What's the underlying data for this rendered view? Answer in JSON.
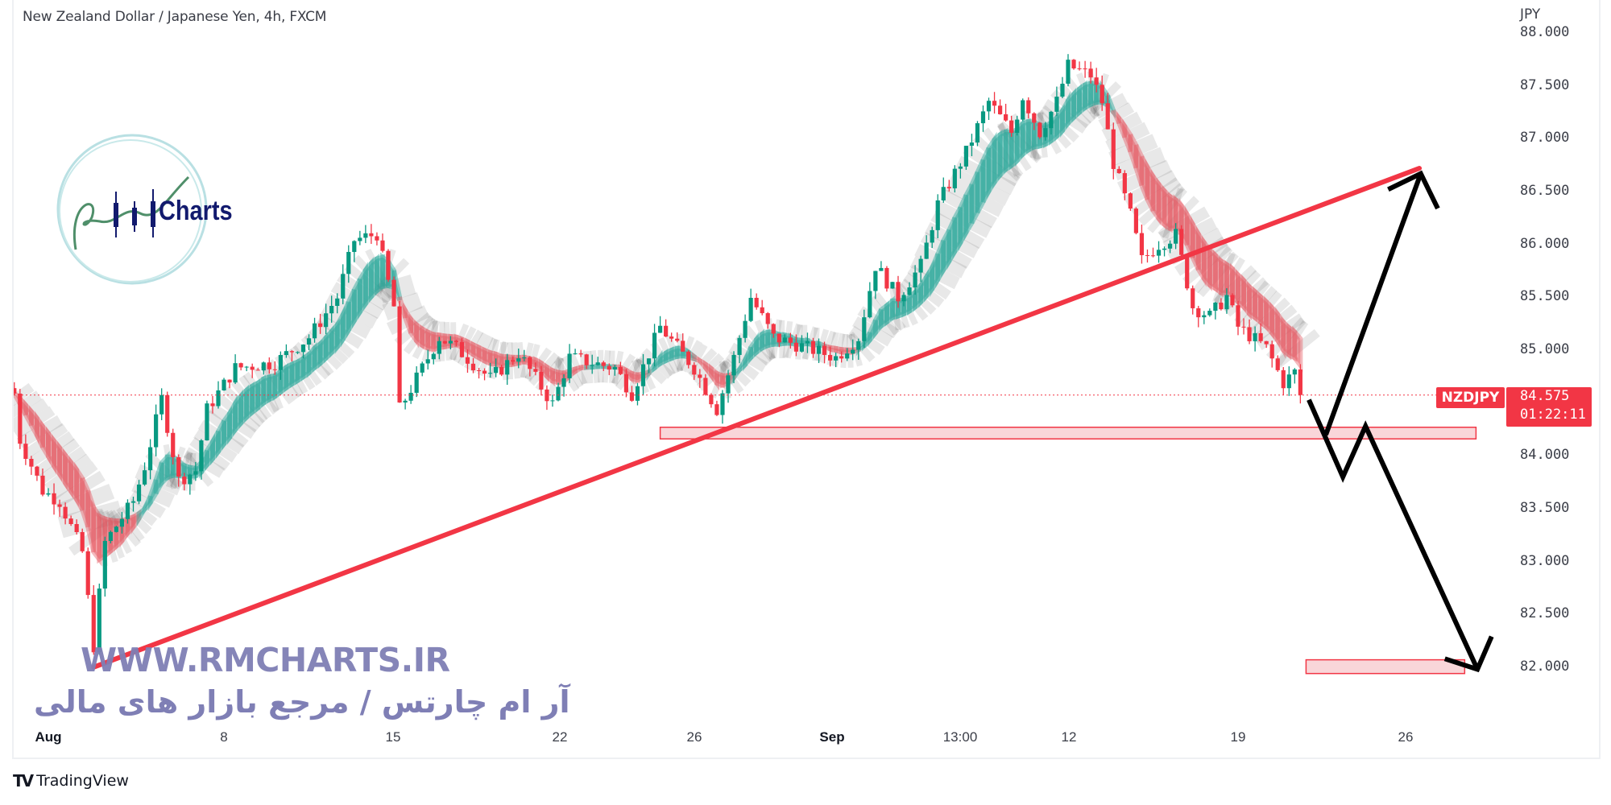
{
  "header": {
    "title": "New Zealand Dollar / Japanese Yen, 4h, FXCM"
  },
  "price_axis": {
    "currency": "JPY",
    "ticks": [
      "88.000",
      "87.500",
      "87.000",
      "86.500",
      "86.000",
      "85.500",
      "85.000",
      "84.000",
      "83.500",
      "83.000",
      "82.500",
      "82.000"
    ]
  },
  "time_axis": {
    "ticks": [
      "Aug",
      "8",
      "15",
      "22",
      "26",
      "Sep",
      "13:00",
      "12",
      "19",
      "26"
    ]
  },
  "last_price": {
    "symbol": "NZDJPY",
    "price": "84.575",
    "countdown": "01:22:11"
  },
  "watermark": {
    "url": "WWW.RMCHARTS.IR",
    "tagline": "آر ام چارتس / مرجع بازار های مالی",
    "logo_text": "Charts"
  },
  "footer": {
    "brand": "TradingView"
  },
  "colors": {
    "up": "#089981",
    "down": "#f23645",
    "trendline": "#f23645",
    "zone_fill": "#f9d6d9",
    "zone_border": "#f23645",
    "arrows": "#000000",
    "watermark": "#7f7fb5"
  },
  "chart_data": {
    "type": "candlestick",
    "symbol": "NZDJPY",
    "timeframe": "4h",
    "ylim": [
      81.7,
      88.1
    ],
    "price_path": [
      {
        "t": "Jul 29 00:00",
        "p": 84.59
      },
      {
        "t": "Jul 29 04:00",
        "p": 84.15
      },
      {
        "t": "Jul 29 20:00",
        "p": 83.67
      },
      {
        "t": "Aug 01 08:00",
        "p": 83.57
      },
      {
        "t": "Aug 02 00:00",
        "p": 83.09
      },
      {
        "t": "Aug 02 08:00",
        "p": 82.2
      },
      {
        "t": "Aug 02 16:00",
        "p": 83.18
      },
      {
        "t": "Aug 03 12:00",
        "p": 83.57
      },
      {
        "t": "Aug 03 20:00",
        "p": 83.9
      },
      {
        "t": "Aug 04 08:00",
        "p": 84.54
      },
      {
        "t": "Aug 04 20:00",
        "p": 83.77
      },
      {
        "t": "Aug 05 08:00",
        "p": 83.86
      },
      {
        "t": "Aug 05 16:00",
        "p": 84.44
      },
      {
        "t": "Aug 08 12:00",
        "p": 84.83
      },
      {
        "t": "Aug 09 16:00",
        "p": 84.88
      },
      {
        "t": "Aug 10 16:00",
        "p": 85.12
      },
      {
        "t": "Aug 11 12:00",
        "p": 85.5
      },
      {
        "t": "Aug 12 00:00",
        "p": 86.04
      },
      {
        "t": "Aug 12 16:00",
        "p": 86.1
      },
      {
        "t": "Aug 15 04:00",
        "p": 85.41
      },
      {
        "t": "Aug 15 08:00",
        "p": 84.44
      },
      {
        "t": "Aug 15 20:00",
        "p": 84.73
      },
      {
        "t": "Aug 16 12:00",
        "p": 85.12
      },
      {
        "t": "Aug 17 00:00",
        "p": 85.02
      },
      {
        "t": "Aug 18 00:00",
        "p": 84.73
      },
      {
        "t": "Aug 18 20:00",
        "p": 84.97
      },
      {
        "t": "Aug 19 20:00",
        "p": 84.49
      },
      {
        "t": "Aug 22 08:00",
        "p": 84.93
      },
      {
        "t": "Aug 23 16:00",
        "p": 84.83
      },
      {
        "t": "Aug 24 04:00",
        "p": 84.59
      },
      {
        "t": "Aug 25 00:00",
        "p": 85.22
      },
      {
        "t": "Aug 26 00:00",
        "p": 84.83
      },
      {
        "t": "Aug 26 16:00",
        "p": 84.44
      },
      {
        "t": "Aug 29 04:00",
        "p": 84.93
      },
      {
        "t": "Aug 29 16:00",
        "p": 85.5
      },
      {
        "t": "Aug 30 08:00",
        "p": 85.12
      },
      {
        "t": "Aug 31 08:00",
        "p": 85.02
      },
      {
        "t": "Sep 01 04:00",
        "p": 84.93
      },
      {
        "t": "Sep 01 20:00",
        "p": 85.12
      },
      {
        "t": "Sep 02 08:00",
        "p": 85.8
      },
      {
        "t": "Sep 05 00:00",
        "p": 85.5
      },
      {
        "t": "Sep 05 16:00",
        "p": 85.8
      },
      {
        "t": "Sep 06 04:00",
        "p": 86.38
      },
      {
        "t": "Sep 07 00:00",
        "p": 86.87
      },
      {
        "t": "Sep 07 16:00",
        "p": 87.35
      },
      {
        "t": "Sep 08 08:00",
        "p": 87.06
      },
      {
        "t": "Sep 08 16:00",
        "p": 87.4
      },
      {
        "t": "Sep 09 04:00",
        "p": 87.06
      },
      {
        "t": "Sep 09 16:00",
        "p": 87.35
      },
      {
        "t": "Sep 12 00:00",
        "p": 87.69
      },
      {
        "t": "Sep 12 16:00",
        "p": 87.6
      },
      {
        "t": "Sep 13 00:00",
        "p": 87.35
      },
      {
        "t": "Sep 13 08:00",
        "p": 86.77
      },
      {
        "t": "Sep 13 20:00",
        "p": 86.28
      },
      {
        "t": "Sep 14 04:00",
        "p": 85.85
      },
      {
        "t": "Sep 14 16:00",
        "p": 86.0
      },
      {
        "t": "Sep 15 04:00",
        "p": 86.09
      },
      {
        "t": "Sep 15 16:00",
        "p": 85.41
      },
      {
        "t": "Sep 16 04:00",
        "p": 85.32
      },
      {
        "t": "Sep 16 16:00",
        "p": 85.51
      },
      {
        "t": "Sep 19 00:00",
        "p": 85.22
      },
      {
        "t": "Sep 19 20:00",
        "p": 85.02
      },
      {
        "t": "Sep 20 08:00",
        "p": 84.69
      },
      {
        "t": "Sep 20 16:00",
        "p": 84.79
      },
      {
        "t": "Sep 20 20:00",
        "p": 84.575
      }
    ],
    "annotations": {
      "trendline": [
        {
          "t": "Aug 02 08:00",
          "p": 82.0
        },
        {
          "t": "Sep 26 08:00",
          "p": 86.72
        }
      ],
      "zones": [
        {
          "t1": "Aug 25 00:00",
          "t2": "Sep 28 00:00",
          "p1": 84.27,
          "p2": 84.16
        },
        {
          "t1": "Sep 21 00:00",
          "t2": "Sep 27 16:00",
          "p1": 82.07,
          "p2": 81.94
        }
      ],
      "down_arrow": [
        {
          "t": "Sep 21 02:00",
          "p": 84.53
        },
        {
          "t": "Sep 22 02:00",
          "p": 83.8
        },
        {
          "t": "Sep 22 18:00",
          "p": 84.28
        },
        {
          "t": "Sep 28 01:00",
          "p": 81.98
        }
      ],
      "down_arrow_head": [
        {
          "t": "Sep 27 02:00",
          "p": 82.08
        },
        {
          "t": "Sep 28 01:00",
          "p": 81.98
        },
        {
          "t": "Sep 28 11:00",
          "p": 82.29
        }
      ],
      "up_arrow": [
        {
          "t": "Sep 21 14:00",
          "p": 84.2
        },
        {
          "t": "Sep 26 09:00",
          "p": 86.67
        }
      ],
      "up_arrow_head": [
        {
          "t": "Sep 23 10:00",
          "p": 86.52
        },
        {
          "t": "Sep 26 09:00",
          "p": 86.67
        },
        {
          "t": "Sep 26 21:00",
          "p": 86.34
        }
      ]
    }
  }
}
